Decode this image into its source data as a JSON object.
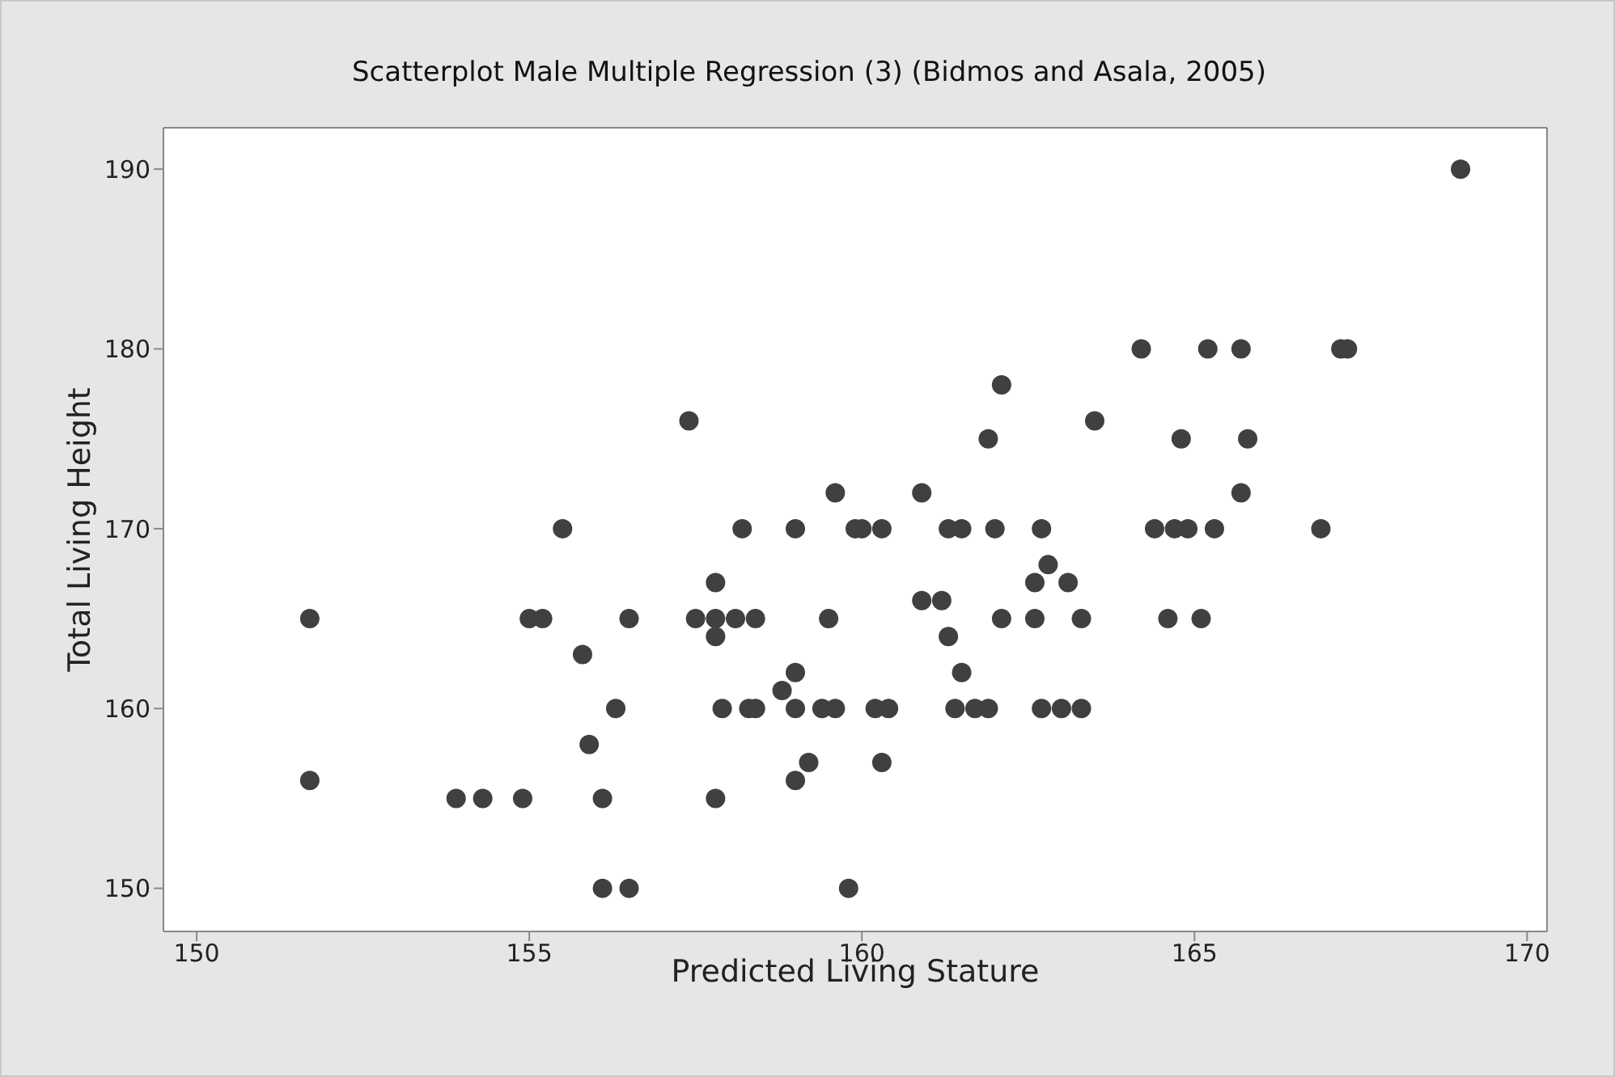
{
  "chart_data": {
    "type": "scatter",
    "title": "Scatterplot Male Multiple Regression (3) (Bidmos and Asala, 2005)",
    "xlabel": "Predicted Living Stature",
    "ylabel": "Total Living Height",
    "x": [
      151.7,
      151.7,
      153.9,
      154.3,
      154.9,
      155.0,
      155.2,
      155.5,
      155.8,
      155.9,
      156.1,
      156.1,
      156.3,
      156.5,
      156.5,
      157.4,
      157.5,
      157.8,
      157.8,
      157.8,
      157.8,
      157.9,
      158.1,
      158.2,
      158.4,
      158.3,
      158.4,
      158.8,
      159.0,
      159.0,
      159.0,
      159.0,
      159.2,
      159.4,
      159.6,
      159.5,
      159.6,
      159.8,
      159.9,
      160.0,
      160.2,
      160.4,
      160.3,
      160.3,
      160.9,
      160.9,
      161.2,
      161.3,
      161.5,
      161.3,
      161.5,
      161.4,
      161.7,
      161.9,
      161.9,
      162.0,
      162.1,
      162.1,
      162.6,
      162.6,
      162.7,
      162.7,
      162.8,
      163.0,
      163.1,
      163.3,
      163.3,
      163.5,
      164.2,
      164.4,
      164.6,
      164.7,
      164.8,
      164.9,
      165.1,
      165.2,
      165.3,
      165.7,
      165.7,
      165.8,
      166.9,
      167.2,
      167.3,
      169.0
    ],
    "series": [
      {
        "color": "#404040",
        "values": [
          165,
          156,
          155,
          155,
          155,
          165,
          165,
          170,
          163,
          158,
          155,
          150,
          160,
          150,
          165,
          176,
          165,
          165,
          167,
          164,
          155,
          160,
          165,
          170,
          165,
          160,
          160,
          161,
          170,
          162,
          160,
          156,
          157,
          160,
          160,
          165,
          172,
          150,
          170,
          170,
          160,
          160,
          157,
          170,
          172,
          166,
          166,
          170,
          170,
          164,
          162,
          160,
          160,
          160,
          175,
          170,
          165,
          178,
          167,
          165,
          170,
          160,
          168,
          160,
          167,
          165,
          160,
          176,
          180,
          170,
          165,
          170,
          175,
          170,
          165,
          180,
          170,
          180,
          172,
          175,
          170,
          180,
          180,
          190
        ]
      }
    ],
    "xlim": [
      149.5,
      170.3
    ],
    "ylim": [
      147.6,
      192.3
    ],
    "xticks": [
      150,
      155,
      160,
      165,
      170
    ],
    "yticks": [
      150,
      160,
      170,
      180,
      190
    ],
    "grid": false,
    "marker": "circle"
  }
}
